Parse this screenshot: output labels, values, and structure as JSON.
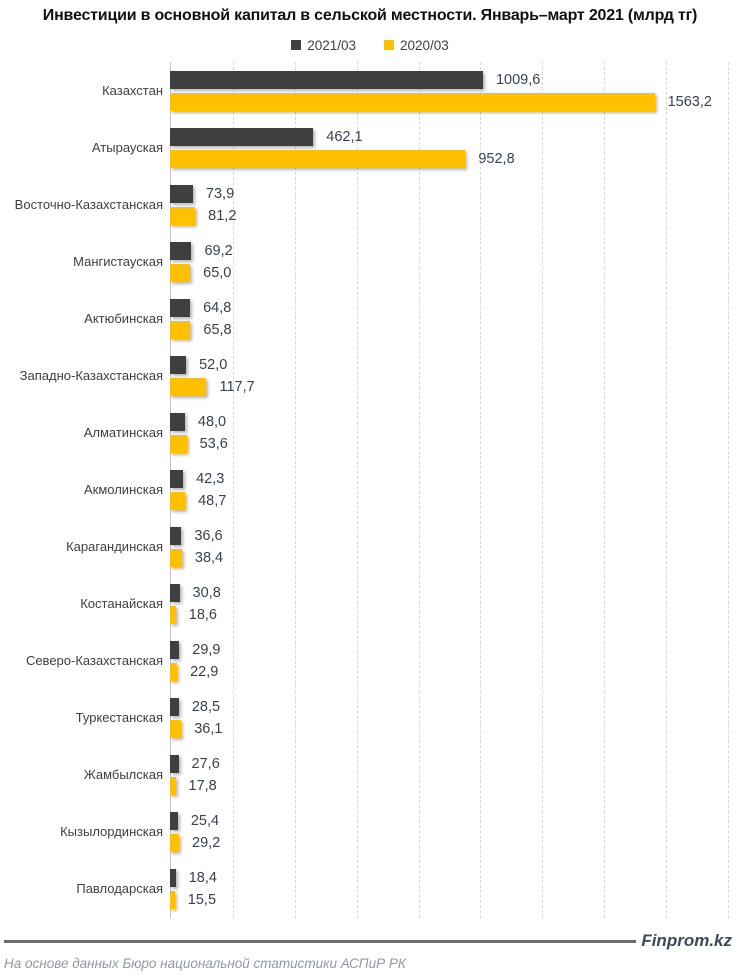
{
  "title": "Инвестиции в основной капитал в сельской местности. Январь–март 2021 (млрд тг)",
  "footer": {
    "brand": "Finprom.kz",
    "source": "На основе данных Бюро национальной статистики АСПиР РК"
  },
  "colors": {
    "series_2021": "#3F3F3F",
    "series_2020": "#FFC000",
    "gridline": "#D8D8D8",
    "axis_line": "#C4C4C4",
    "value_label": "#39414F",
    "category_label": "#3F3F3F"
  },
  "chart_data": {
    "type": "bar",
    "orientation": "horizontal",
    "title": "Инвестиции в основной капитал в сельской местности. Январь–март 2021 (млрд тг)",
    "legend_position": "top",
    "grid": true,
    "xlim": [
      0,
      1800
    ],
    "grid_step": 200,
    "value_labels": "outside-end, comma decimal",
    "categories": [
      "Казахстан",
      "Атырауская",
      "Восточно-Казахстанская",
      "Мангистауская",
      "Актюбинская",
      "Западно-Казахстанская",
      "Алматинская",
      "Акмолинская",
      "Карагандинская",
      "Костанайская",
      "Северо-Казахстанская",
      "Туркестанская",
      "Жамбылская",
      "Кызылординская",
      "Павлодарская"
    ],
    "series": [
      {
        "name": "2021/03",
        "color": "#3F3F3F",
        "values": [
          1009.6,
          462.1,
          73.9,
          69.2,
          64.8,
          52.0,
          48.0,
          42.3,
          36.6,
          30.8,
          29.9,
          28.5,
          27.6,
          25.4,
          18.4
        ]
      },
      {
        "name": "2020/03",
        "color": "#FFC000",
        "values": [
          1563.2,
          952.8,
          81.2,
          65.0,
          65.8,
          117.7,
          53.6,
          48.7,
          38.4,
          18.6,
          22.9,
          36.1,
          17.8,
          29.2,
          15.5
        ]
      }
    ]
  }
}
